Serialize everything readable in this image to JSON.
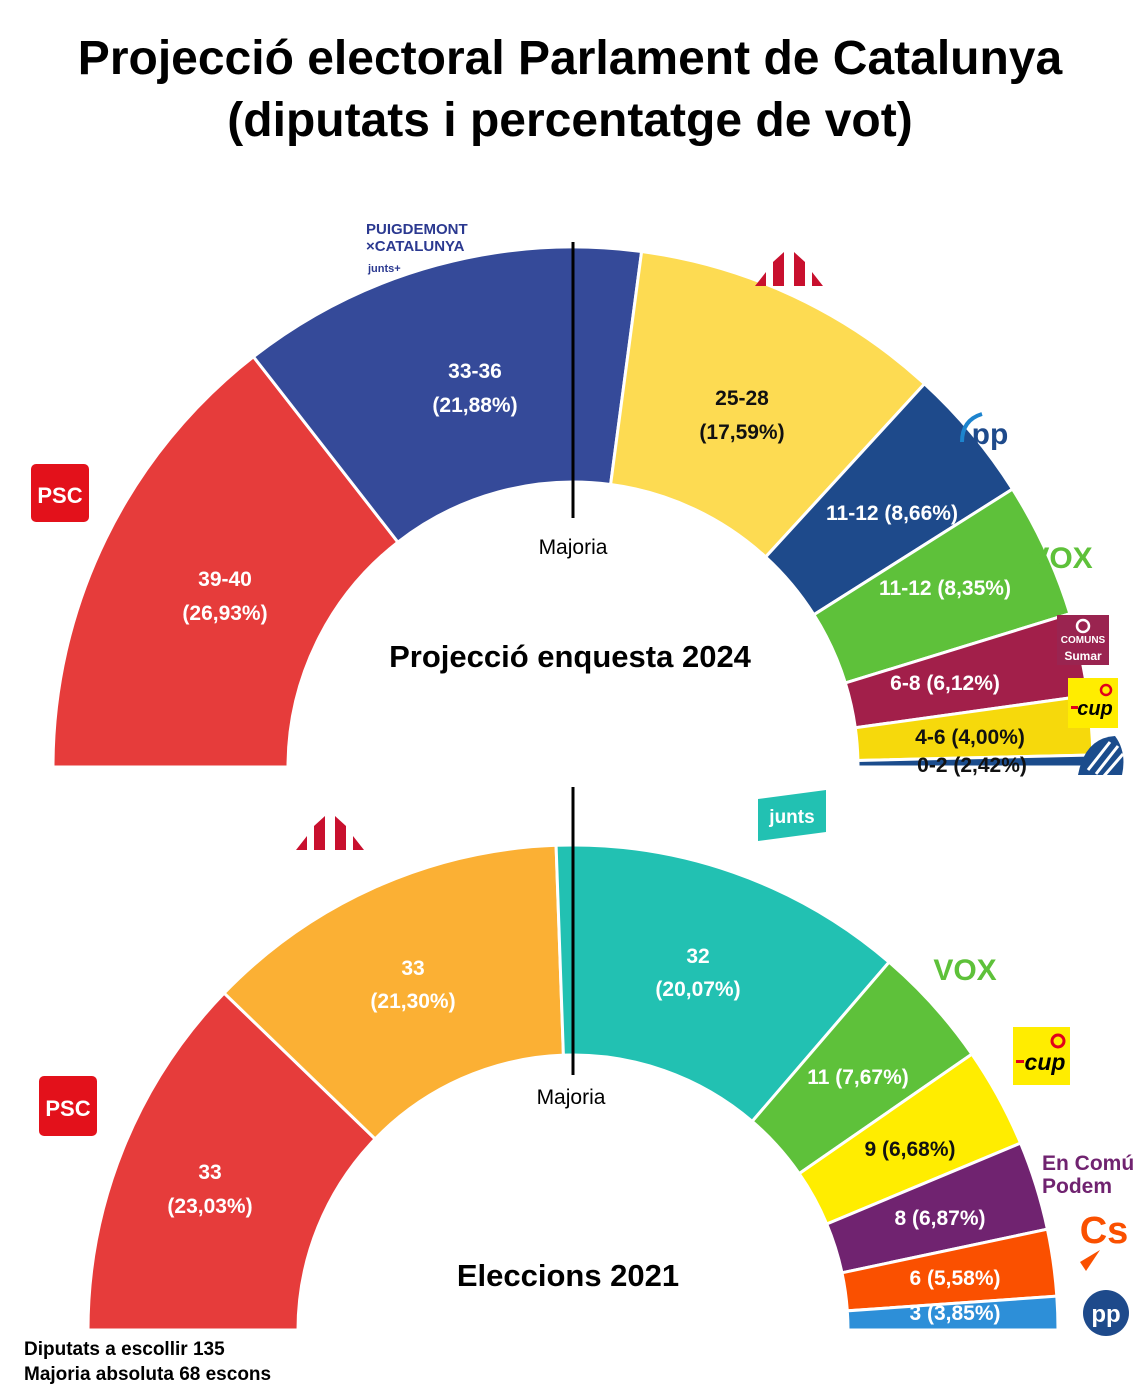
{
  "title_line1": "Projecció electoral Parlament de Catalunya",
  "title_line2": "(diputats i percentatge de vot)",
  "majority_label": "Majoria",
  "footer_line1": "Diputats a escollir 135",
  "footer_line2": "Majoria absoluta 68 escons",
  "logos": {
    "psc": "PSC",
    "puigdemont_line1": "PUIGDEMONT",
    "puigdemont_line2": "×CATALUNYA",
    "puigdemont_line3": "junts+",
    "junts": "junts",
    "pp": "pp",
    "vox": "VOX",
    "comuns_line1": "COMUNS",
    "comuns_line2": "Sumar",
    "cup": "cup",
    "encomu_line1": "En Comú",
    "encomu_line2": "Podem",
    "cs": "Cs"
  },
  "chart_data": [
    {
      "type": "pie",
      "subtype": "half-donut",
      "title": "Projecció enquesta 2024",
      "series": [
        {
          "party": "PSC",
          "label": "39-40",
          "pct": "(26,93%)",
          "seats": 39.5,
          "color": "#E63C3B"
        },
        {
          "party": "Junts+",
          "label": "33-36",
          "pct": "(21,88%)",
          "seats": 34.5,
          "color": "#354A99"
        },
        {
          "party": "ERC",
          "label": "25-28",
          "pct": "(17,59%)",
          "seats": 26.5,
          "color": "#FDDB52"
        },
        {
          "party": "PP",
          "label": "11-12 (8,66%)",
          "seats": 11.5,
          "color": "#1E4A8B"
        },
        {
          "party": "VOX",
          "label": "11-12 (8,35%)",
          "seats": 11.5,
          "color": "#5EC13A"
        },
        {
          "party": "Comuns Sumar",
          "label": "6-8 (6,12%)",
          "seats": 7,
          "color": "#A21F4A"
        },
        {
          "party": "CUP",
          "label": "4-6 (4,00%)",
          "seats": 5,
          "color": "#F6D90C"
        },
        {
          "party": "Aliança Catalana",
          "label": "0-2 (2,42%)",
          "seats": 1,
          "color": "#1B4C8C"
        }
      ],
      "total_seats": 135,
      "majority": 68
    },
    {
      "type": "pie",
      "subtype": "half-donut",
      "title": "Eleccions 2021",
      "series": [
        {
          "party": "PSC",
          "label": "33",
          "pct": "(23,03%)",
          "seats": 33,
          "color": "#E63C3B"
        },
        {
          "party": "ERC",
          "label": "33",
          "pct": "(21,30%)",
          "seats": 33,
          "color": "#FBB034"
        },
        {
          "party": "Junts",
          "label": "32",
          "pct": "(20,07%)",
          "seats": 32,
          "color": "#22C1B2"
        },
        {
          "party": "VOX",
          "label": "11 (7,67%)",
          "seats": 11,
          "color": "#5EC13A"
        },
        {
          "party": "CUP",
          "label": "9 (6,68%)",
          "seats": 9,
          "color": "#FFED00"
        },
        {
          "party": "En Comú Podem",
          "label": "8 (6,87%)",
          "seats": 8,
          "color": "#702370"
        },
        {
          "party": "Cs",
          "label": "6 (5,58%)",
          "seats": 6,
          "color": "#FA5000"
        },
        {
          "party": "PP",
          "label": "3 (3,85%)",
          "seats": 3,
          "color": "#2D8FD8"
        }
      ],
      "total_seats": 135,
      "majority": 68
    }
  ]
}
